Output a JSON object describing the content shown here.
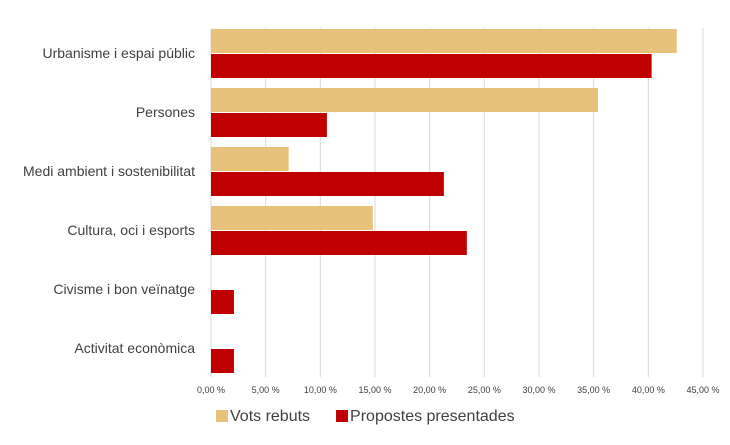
{
  "chart_data": {
    "type": "bar",
    "orientation": "horizontal",
    "title": "",
    "xlabel": "",
    "ylabel": "",
    "categories": [
      "Urbanisme i espai públic",
      "Persones",
      "Medi ambient i sostenibilitat",
      "Cultura, oci i esports",
      "Civisme i bon veïnatge",
      "Activitat econòmica"
    ],
    "series": [
      {
        "name": "Vots rebuts",
        "color": "#E8C17A",
        "values": [
          42.6,
          35.4,
          7.1,
          14.8,
          0,
          0
        ]
      },
      {
        "name": "Propostes presentades",
        "color": "#C00000",
        "values": [
          40.3,
          10.6,
          21.3,
          23.4,
          2.1,
          2.1
        ]
      }
    ],
    "xlim": [
      0,
      45
    ],
    "xticks": [
      0,
      5,
      10,
      15,
      20,
      25,
      30,
      35,
      40,
      45
    ],
    "xtick_labels": [
      "0,00 %",
      "5,00 %",
      "10,00 %",
      "15,00 %",
      "20,00 %",
      "25,00 %",
      "30,00 %",
      "35,00 %",
      "40,00 %",
      "45,00 %"
    ],
    "grid": "vertical",
    "legend_position": "bottom",
    "colors": {
      "gridline": "#D9D9D9",
      "text": "#404040"
    }
  }
}
